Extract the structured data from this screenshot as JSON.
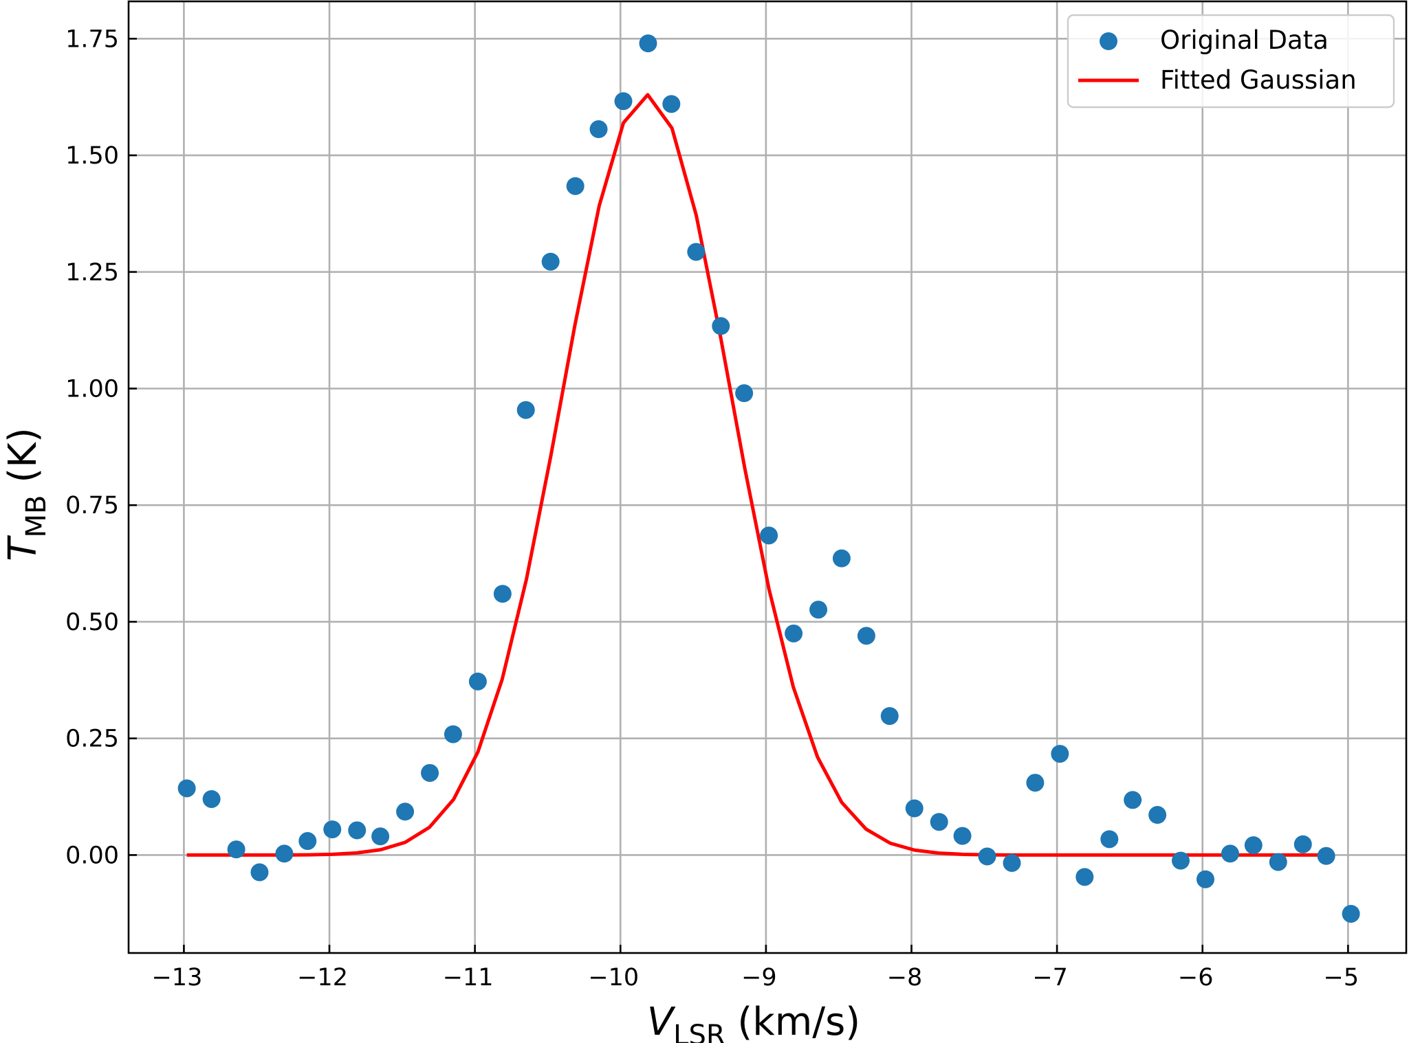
{
  "chart_data": {
    "type": "scatter+line",
    "xlabel": {
      "symbol": "V",
      "subscript": "LSR",
      "units": "(km/s)"
    },
    "ylabel": {
      "symbol": "T",
      "subscript": "MB",
      "units": "(K)"
    },
    "xlim": [
      -13.38,
      -4.6
    ],
    "ylim": [
      -0.21,
      1.83
    ],
    "xticks": [
      -13,
      -12,
      -11,
      -10,
      -9,
      -8,
      -7,
      -6,
      -5
    ],
    "xtick_labels": [
      "−13",
      "−12",
      "−11",
      "−10",
      "−9",
      "−8",
      "−7",
      "−6",
      "−5"
    ],
    "yticks": [
      0.0,
      0.25,
      0.5,
      0.75,
      1.0,
      1.25,
      1.5,
      1.75
    ],
    "ytick_labels": [
      "0.00",
      "0.25",
      "0.50",
      "0.75",
      "1.00",
      "1.25",
      "1.50",
      "1.75"
    ],
    "grid": true,
    "legend_position": "top-right",
    "colors": {
      "points": "#1f77b4",
      "fit": "#ff0000",
      "grid": "#b0b0b0"
    },
    "series": [
      {
        "name": "Original Data",
        "kind": "scatter",
        "x": [
          -12.98,
          -12.81,
          -12.64,
          -12.48,
          -12.31,
          -12.15,
          -11.98,
          -11.81,
          -11.65,
          -11.48,
          -11.31,
          -11.15,
          -10.98,
          -10.81,
          -10.65,
          -10.48,
          -10.31,
          -10.15,
          -9.98,
          -9.81,
          -9.65,
          -9.48,
          -9.31,
          -9.15,
          -8.98,
          -8.81,
          -8.64,
          -8.48,
          -8.31,
          -8.15,
          -7.98,
          -7.81,
          -7.65,
          -7.48,
          -7.31,
          -7.15,
          -6.98,
          -6.81,
          -6.64,
          -6.48,
          -6.31,
          -6.15,
          -5.98,
          -5.81,
          -5.65,
          -5.48,
          -5.31,
          -5.15,
          -4.98
        ],
        "y": [
          0.143,
          0.12,
          0.012,
          -0.037,
          0.003,
          0.03,
          0.055,
          0.053,
          0.04,
          0.093,
          0.176,
          0.259,
          0.372,
          0.56,
          0.954,
          1.272,
          1.434,
          1.556,
          1.616,
          1.74,
          1.61,
          1.293,
          1.134,
          0.99,
          0.685,
          0.475,
          0.526,
          0.636,
          0.47,
          0.298,
          0.1,
          0.071,
          0.041,
          -0.003,
          -0.017,
          0.155,
          0.217,
          -0.047,
          0.034,
          0.118,
          0.086,
          -0.012,
          -0.052,
          0.003,
          0.021,
          -0.015,
          0.023,
          -0.002,
          -0.126
        ]
      },
      {
        "name": "Fitted Gaussian",
        "kind": "line",
        "function": "gaussian",
        "amplitude": 1.63,
        "center": -9.82,
        "sigma": 0.58,
        "x_range": [
          -12.98,
          -4.98
        ],
        "sample_step": 0.1667
      }
    ]
  }
}
